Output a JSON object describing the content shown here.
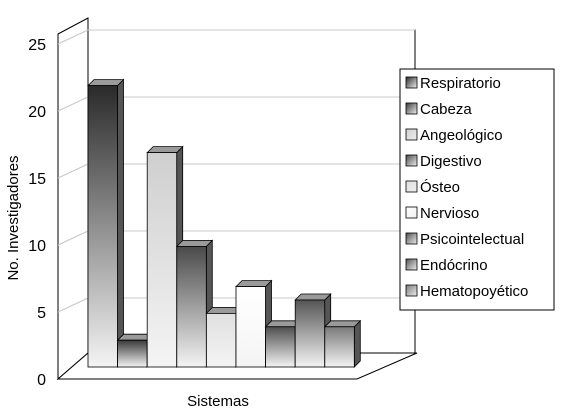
{
  "chart_data": {
    "type": "bar",
    "title": "",
    "xlabel": "Sistemas",
    "ylabel": "No. Investigadores",
    "ylim": [
      0,
      25
    ],
    "yticks": [
      0,
      5,
      10,
      15,
      20,
      25
    ],
    "grid": true,
    "three_d": true,
    "legend_position": "right",
    "series": [
      {
        "name": "Respiratorio",
        "value": 21,
        "color": "#2a2a2a"
      },
      {
        "name": "Cabeza",
        "value": 2,
        "color": "#3a3a3a"
      },
      {
        "name": "Angeológico",
        "value": 16,
        "color": "#cfcfcf"
      },
      {
        "name": "Digestivo",
        "value": 9,
        "color": "#4a4a4a"
      },
      {
        "name": "Ósteo",
        "value": 4,
        "color": "#e0e0e0"
      },
      {
        "name": "Nervioso",
        "value": 6,
        "color": "#ffffff"
      },
      {
        "name": "Psicointelectual",
        "value": 3,
        "color": "#4e4e4e"
      },
      {
        "name": "Endócrino",
        "value": 5,
        "color": "#555555"
      },
      {
        "name": "Hematopoyético",
        "value": 3,
        "color": "#7a7a7a"
      }
    ]
  }
}
